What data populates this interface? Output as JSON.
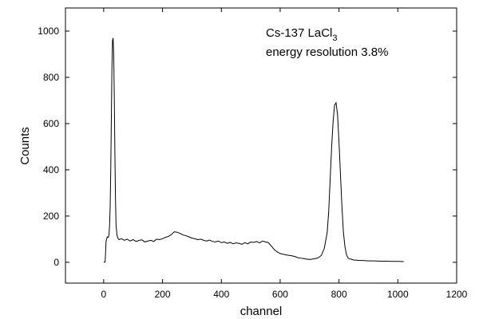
{
  "chart_data": {
    "type": "line",
    "title": "",
    "xlabel": "channel",
    "ylabel": "Counts",
    "xlim": [
      -130,
      1200
    ],
    "ylim": [
      -90,
      1100
    ],
    "xticks": [
      0,
      200,
      400,
      600,
      800,
      1000,
      1200
    ],
    "yticks": [
      0,
      200,
      400,
      600,
      800,
      1000
    ],
    "grid": false,
    "annotation": {
      "line1": "Cs-137 LaCl",
      "line1_subscript": "3",
      "line2": "energy resolution 3.8%"
    },
    "series": [
      {
        "color": "#000000",
        "x": [
          0,
          5,
          8,
          12,
          16,
          18,
          20,
          22,
          24,
          26,
          28,
          30,
          32,
          34,
          36,
          38,
          40,
          42,
          45,
          48,
          52,
          56,
          60,
          70,
          80,
          90,
          100,
          110,
          120,
          130,
          140,
          150,
          160,
          170,
          180,
          190,
          200,
          210,
          220,
          230,
          240,
          250,
          260,
          270,
          280,
          290,
          300,
          310,
          320,
          330,
          340,
          350,
          360,
          370,
          380,
          390,
          400,
          410,
          420,
          430,
          440,
          450,
          460,
          470,
          480,
          490,
          500,
          510,
          520,
          530,
          540,
          550,
          560,
          570,
          580,
          590,
          600,
          610,
          620,
          630,
          640,
          650,
          660,
          670,
          680,
          690,
          700,
          710,
          720,
          730,
          740,
          750,
          760,
          765,
          770,
          775,
          780,
          785,
          790,
          795,
          800,
          805,
          810,
          815,
          820,
          825,
          830,
          835,
          840,
          850,
          860,
          870,
          880,
          890,
          900,
          920,
          940,
          960,
          980,
          1000,
          1020
        ],
        "y": [
          0,
          2,
          90,
          110,
          108,
          120,
          160,
          240,
          400,
          620,
          840,
          960,
          970,
          900,
          720,
          480,
          280,
          160,
          120,
          105,
          98,
          100,
          102,
          95,
          100,
          92,
          98,
          90,
          95,
          97,
          88,
          92,
          95,
          90,
          100,
          98,
          102,
          108,
          112,
          120,
          132,
          130,
          125,
          118,
          115,
          110,
          105,
          102,
          98,
          100,
          95,
          92,
          96,
          90,
          88,
          92,
          85,
          88,
          82,
          86,
          80,
          84,
          82,
          78,
          85,
          80,
          88,
          86,
          90,
          84,
          92,
          88,
          85,
          70,
          55,
          45,
          38,
          35,
          32,
          30,
          28,
          25,
          20,
          18,
          16,
          14,
          12,
          14,
          16,
          20,
          30,
          60,
          130,
          220,
          360,
          500,
          610,
          680,
          690,
          640,
          520,
          380,
          240,
          130,
          70,
          35,
          20,
          15,
          14,
          10,
          9,
          8,
          8,
          7,
          6,
          6,
          5,
          5,
          4,
          4,
          3
        ]
      }
    ]
  }
}
